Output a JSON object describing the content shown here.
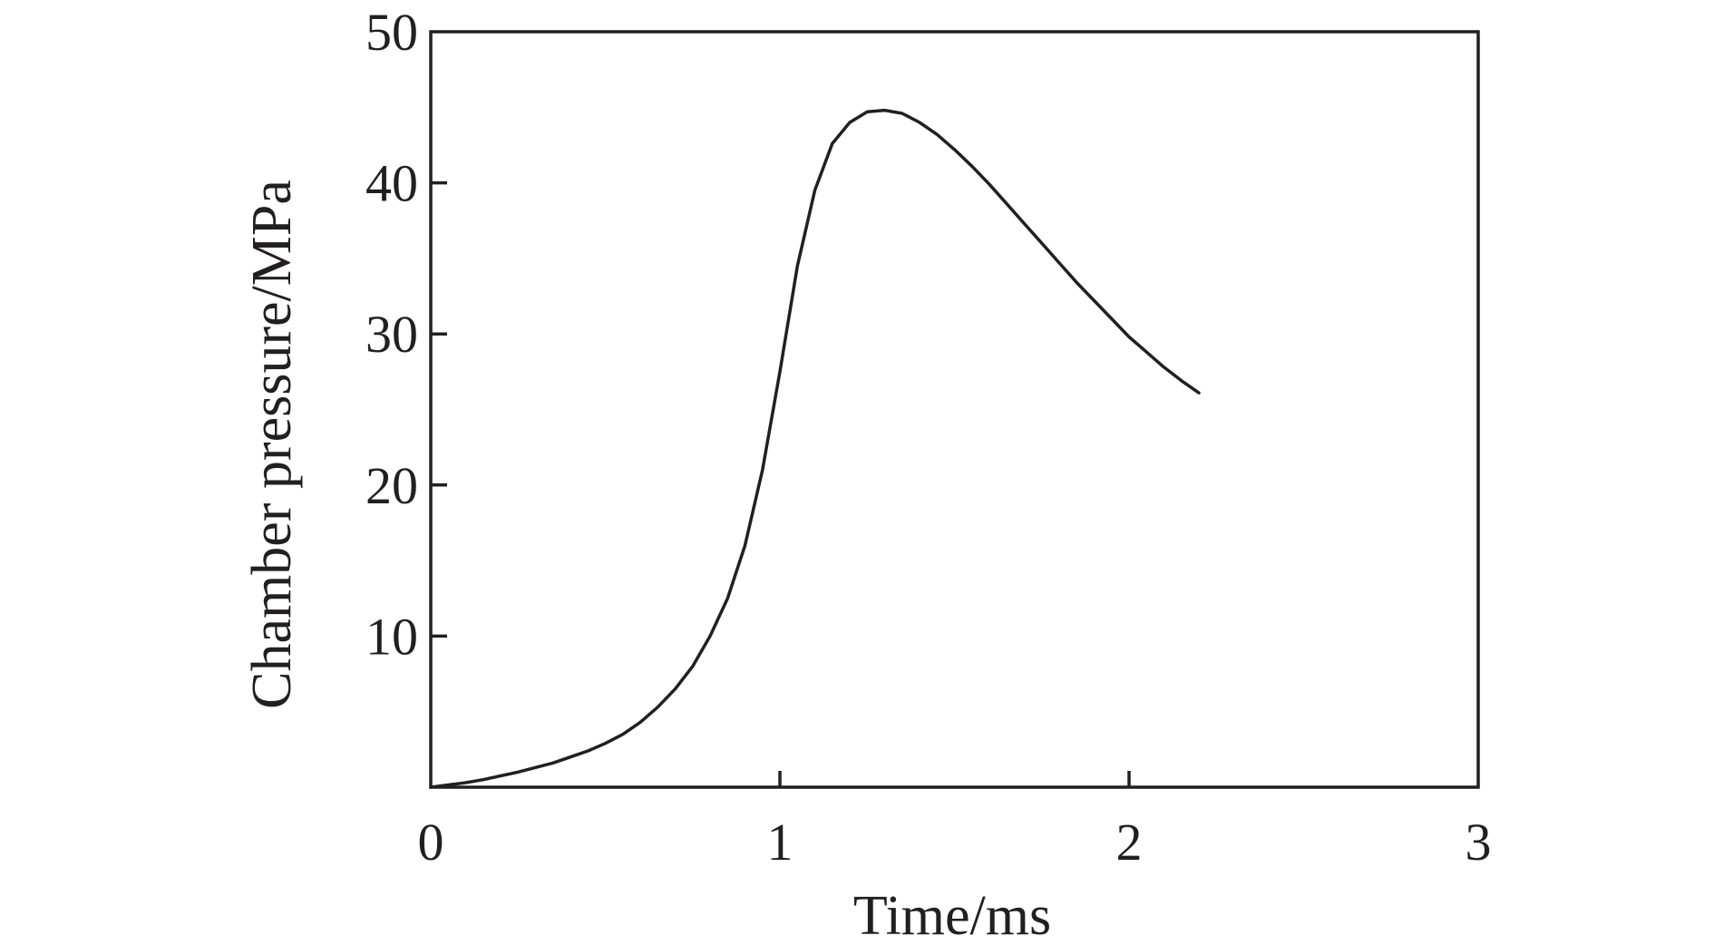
{
  "chart_data": {
    "type": "line",
    "title": "",
    "xlabel": "Time/ms",
    "ylabel": "Chamber pressure/MPa",
    "xlim": [
      0,
      3
    ],
    "ylim": [
      0,
      50
    ],
    "xticks": [
      0,
      1,
      2,
      3
    ],
    "xtick_labels": [
      "0",
      "1",
      "2",
      "3"
    ],
    "yticks": [
      10,
      20,
      30,
      40,
      50
    ],
    "ytick_labels": [
      "10",
      "20",
      "30",
      "40",
      "50"
    ],
    "grid": false,
    "legend": "none",
    "line_color": "#231f20",
    "series": [
      {
        "x": [
          0,
          0.05,
          0.1,
          0.15,
          0.2,
          0.25,
          0.3,
          0.35,
          0.4,
          0.45,
          0.5,
          0.55,
          0.6,
          0.65,
          0.7,
          0.75,
          0.8,
          0.85,
          0.9,
          0.95,
          1.0,
          1.05,
          1.1,
          1.15,
          1.2,
          1.25,
          1.3,
          1.35,
          1.4,
          1.45,
          1.5,
          1.55,
          1.6,
          1.65,
          1.7,
          1.75,
          1.8,
          1.85,
          1.9,
          1.95,
          2.0,
          2.05,
          2.1,
          2.15,
          2.2
        ],
        "y": [
          0,
          0.15,
          0.3,
          0.5,
          0.75,
          1.0,
          1.3,
          1.6,
          2.0,
          2.4,
          2.9,
          3.5,
          4.3,
          5.3,
          6.5,
          8.0,
          10.0,
          12.5,
          16.0,
          21.0,
          27.5,
          34.5,
          39.5,
          42.6,
          44.0,
          44.7,
          44.8,
          44.6,
          44.0,
          43.2,
          42.2,
          41.1,
          39.9,
          38.6,
          37.3,
          36.0,
          34.7,
          33.4,
          32.2,
          31.0,
          29.8,
          28.8,
          27.8,
          26.9,
          26.1
        ]
      }
    ]
  }
}
